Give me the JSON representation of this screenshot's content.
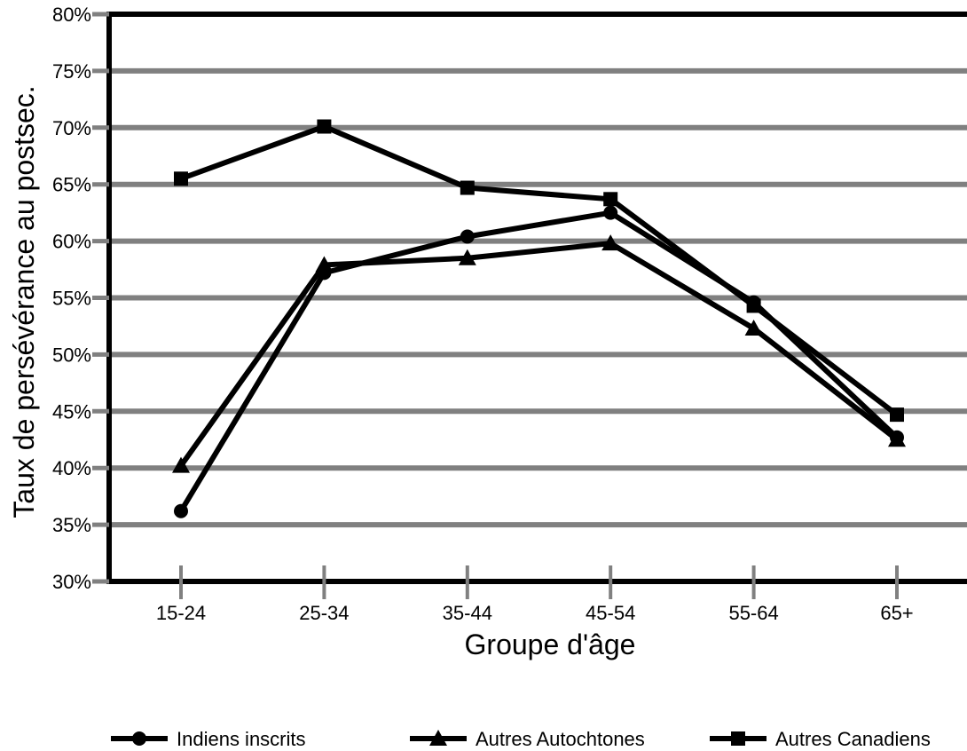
{
  "chart_data": {
    "type": "line",
    "title": "",
    "xlabel": "Groupe d'âge",
    "ylabel": "Taux de persévérance au postsec.",
    "categories": [
      "15-24",
      "25-34",
      "35-44",
      "45-54",
      "55-64",
      "65+"
    ],
    "ylim": [
      30,
      80
    ],
    "yticks": [
      "30%",
      "35%",
      "40%",
      "45%",
      "50%",
      "55%",
      "60%",
      "65%",
      "70%",
      "75%",
      "80%"
    ],
    "grid": true,
    "legend_position": "bottom",
    "series": [
      {
        "name": "Indiens inscrits",
        "marker": "circle",
        "values": [
          36.2,
          57.2,
          60.4,
          62.5,
          54.6,
          42.7
        ]
      },
      {
        "name": "Autres Autochtones",
        "marker": "triangle",
        "values": [
          40.2,
          57.9,
          58.5,
          59.8,
          52.3,
          42.5
        ]
      },
      {
        "name": "Autres Canadiens",
        "marker": "square",
        "values": [
          65.5,
          70.1,
          64.7,
          63.7,
          54.3,
          44.7
        ]
      }
    ],
    "colors": {
      "line": "#000000",
      "grid": "#808080"
    }
  }
}
